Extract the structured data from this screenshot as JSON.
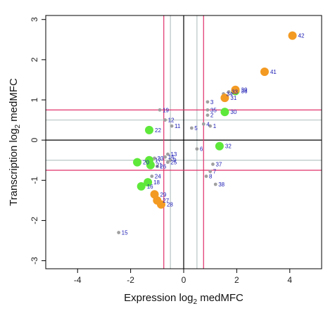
{
  "chart_data": {
    "type": "scatter",
    "xlabel": "Expression log",
    "xlabel_sub": "2",
    "xlabel_after": " medMFC",
    "ylabel": "Transcription log",
    "ylabel_sub": "2",
    "ylabel_after": " medMFC",
    "xlim": [
      -5.2,
      5.2
    ],
    "ylim": [
      -3.2,
      3.1
    ],
    "xticks": [
      -4,
      -2,
      0,
      2,
      4
    ],
    "yticks": [
      -3,
      -2,
      -1,
      0,
      1,
      2,
      3
    ],
    "grid": false,
    "colors": {
      "frame": "#000000",
      "zero_line": "#000000",
      "red_line": "#e0306a",
      "light_line": "#b8c4c4",
      "gray_point": "#a0a0a0",
      "green_point": "#5ee83a",
      "orange_point": "#f39a22",
      "label": "#1a1ab4"
    },
    "reference_lines": {
      "red_vertical": [
        -0.75,
        0.75
      ],
      "red_horizontal": [
        -0.75,
        0.75
      ],
      "light_vertical": [
        -0.5,
        0.5
      ],
      "light_horizontal": [
        -0.5,
        0.5
      ],
      "zero_vertical": [
        0
      ],
      "zero_horizontal": [
        0
      ]
    },
    "series": [
      {
        "group": "gray",
        "points": [
          {
            "label": "1",
            "x": 1.0,
            "y": 0.35
          },
          {
            "label": "2",
            "x": 0.9,
            "y": 0.62
          },
          {
            "label": "3",
            "x": 0.9,
            "y": 0.95
          },
          {
            "label": "4",
            "x": 0.75,
            "y": 0.4
          },
          {
            "label": "5",
            "x": 0.3,
            "y": 0.3
          },
          {
            "label": "6",
            "x": 0.5,
            "y": -0.22
          },
          {
            "label": "7",
            "x": 1.0,
            "y": -0.78
          },
          {
            "label": "8",
            "x": 0.85,
            "y": -0.9
          },
          {
            "label": "9",
            "x": -0.5,
            "y": -0.5
          },
          {
            "label": "11",
            "x": -0.45,
            "y": 0.35
          },
          {
            "label": "12",
            "x": -0.7,
            "y": 0.5
          },
          {
            "label": "13",
            "x": -0.6,
            "y": -0.35
          },
          {
            "label": "14",
            "x": -0.7,
            "y": -0.42
          },
          {
            "label": "15",
            "x": -2.45,
            "y": -2.3
          },
          {
            "label": "19",
            "x": -0.9,
            "y": 0.75
          },
          {
            "label": "23",
            "x": -1.1,
            "y": -0.45
          },
          {
            "label": "24",
            "x": -1.2,
            "y": -0.9
          },
          {
            "label": "25",
            "x": -0.6,
            "y": -0.55
          },
          {
            "label": "26",
            "x": -1.0,
            "y": -0.65
          },
          {
            "label": "34",
            "x": 1.5,
            "y": 1.15
          },
          {
            "label": "35",
            "x": 0.9,
            "y": 0.75
          },
          {
            "label": "37",
            "x": 1.1,
            "y": -0.6
          },
          {
            "label": "38",
            "x": 1.2,
            "y": -1.1
          },
          {
            "label": "33",
            "x": 1.7,
            "y": 1.2
          }
        ]
      },
      {
        "group": "green",
        "points": [
          {
            "label": "16",
            "x": -1.6,
            "y": -1.15
          },
          {
            "label": "17",
            "x": -1.3,
            "y": -0.5
          },
          {
            "label": "18",
            "x": -1.35,
            "y": -1.05
          },
          {
            "label": "20",
            "x": -1.75,
            "y": -0.55
          },
          {
            "label": "21",
            "x": -1.25,
            "y": -0.62
          },
          {
            "label": "22",
            "x": -1.3,
            "y": 0.25
          },
          {
            "label": "30",
            "x": 1.55,
            "y": 0.7
          },
          {
            "label": "32",
            "x": 1.35,
            "y": -0.15
          },
          {
            "label": "36",
            "x": 1.95,
            "y": 1.22
          }
        ]
      },
      {
        "group": "orange",
        "points": [
          {
            "label": "27",
            "x": -1.0,
            "y": -1.5
          },
          {
            "label": "28",
            "x": -0.85,
            "y": -1.6
          },
          {
            "label": "29",
            "x": -1.1,
            "y": -1.35
          },
          {
            "label": "31",
            "x": 1.55,
            "y": 1.05
          },
          {
            "label": "39",
            "x": 1.95,
            "y": 1.25
          },
          {
            "label": "41",
            "x": 3.05,
            "y": 1.7
          },
          {
            "label": "42",
            "x": 4.1,
            "y": 2.6
          }
        ]
      }
    ]
  }
}
